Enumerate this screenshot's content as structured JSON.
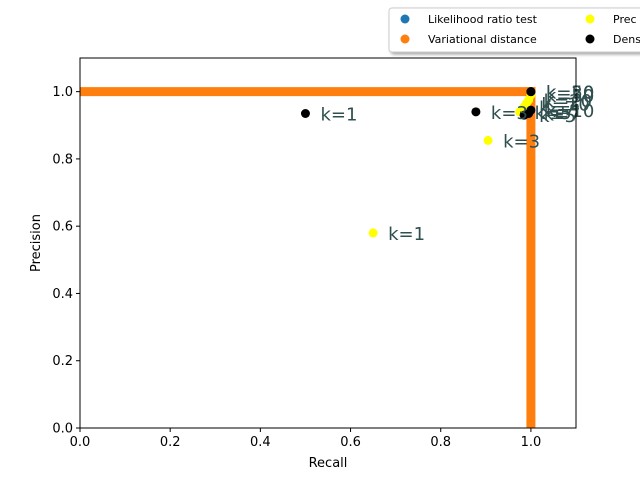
{
  "chart_data": {
    "type": "scatter",
    "xlabel": "Recall",
    "ylabel": "Precision",
    "xlim": [
      0,
      1.1
    ],
    "ylim": [
      0,
      1.1
    ],
    "xticks": [
      "0.0",
      "0.2",
      "0.4",
      "0.6",
      "0.8",
      "1.0"
    ],
    "yticks": [
      "0.0",
      "0.2",
      "0.4",
      "0.6",
      "0.8",
      "1.0"
    ],
    "grid": false,
    "legend_position": "top-right, outside axes (clipped)",
    "legend": [
      {
        "label": "Likelihood ratio test",
        "color": "#1f77b4"
      },
      {
        "label": "Variational distance",
        "color": "#ff7f0e"
      },
      {
        "label": "Prec",
        "color": "#ffff00"
      },
      {
        "label": "Dens",
        "color": "#000000"
      }
    ],
    "series": [
      {
        "name": "Likelihood ratio test",
        "color": "#1f77b4",
        "points": [
          [
            1.0,
            1.0
          ]
        ]
      },
      {
        "name": "Variational distance",
        "color": "#ff7f0e",
        "line_segments": [
          {
            "x": [
              0.0,
              1.0
            ],
            "y": [
              1.0,
              1.0
            ]
          },
          {
            "x": [
              1.0,
              1.0
            ],
            "y": [
              0.0,
              1.0
            ]
          }
        ]
      },
      {
        "name": "Prec",
        "color": "#ffff00",
        "points": [
          {
            "x": 0.65,
            "y": 0.58,
            "label": "k=1"
          },
          {
            "x": 0.905,
            "y": 0.855,
            "label": "k=3"
          },
          {
            "x": 0.975,
            "y": 0.94,
            "label": "k=5"
          },
          {
            "x": 0.985,
            "y": 0.955,
            "label": "k=7"
          },
          {
            "x": 0.99,
            "y": 0.965,
            "label": "k=10"
          },
          {
            "x": 0.995,
            "y": 0.975,
            "label": "k=20"
          },
          {
            "x": 1.0,
            "y": 0.99,
            "label": "k=50"
          }
        ]
      },
      {
        "name": "Dens",
        "color": "#000000",
        "points": [
          {
            "x": 0.5,
            "y": 0.935,
            "label": "k=1"
          },
          {
            "x": 0.878,
            "y": 0.94,
            "label": "k=3"
          },
          {
            "x": 0.985,
            "y": 0.93,
            "label": "k=5"
          },
          {
            "x": 0.995,
            "y": 0.935,
            "label": "k=7"
          },
          {
            "x": 1.0,
            "y": 0.945,
            "label": "k=10"
          },
          {
            "x": 1.0,
            "y": 1.0,
            "label": "k=20"
          },
          {
            "x": 1.0,
            "y": 1.0,
            "label": "k=50"
          }
        ]
      }
    ]
  }
}
